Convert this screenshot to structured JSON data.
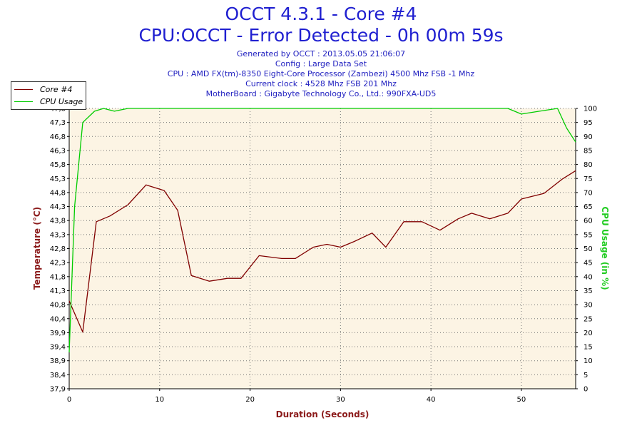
{
  "header": {
    "title": "OCCT 4.3.1 - Core #4",
    "subtitle": "CPU:OCCT - Error Detected - 0h 00m 59s",
    "info_lines": [
      "Generated by OCCT : 2013.05.05 21:06:07",
      "Config : Large Data Set",
      "CPU : AMD FX(tm)-8350 Eight-Core Processor (Zambezi) 4500 Mhz FSB -1 Mhz",
      "Current clock : 4528 Mhz FSB 201 Mhz",
      "MotherBoard : Gigabyte Technology Co., Ltd.: 990FXA-UD5"
    ]
  },
  "legend": {
    "items": [
      {
        "label": "Core #4",
        "color": "#800000"
      },
      {
        "label": "CPU Usage",
        "color": "#00cc00"
      }
    ],
    "position": "top-left"
  },
  "chart_data": {
    "type": "line",
    "xlabel": "Duration (Seconds)",
    "ylabel": "Temperature (°C)",
    "y2label": "CPU Usage (in %)",
    "xlim": [
      0,
      56
    ],
    "ylim": [
      37.9,
      47.8
    ],
    "y2lim": [
      0,
      100
    ],
    "x_ticks": [
      0,
      10,
      20,
      30,
      40,
      50
    ],
    "y_ticks": [
      "37,9",
      "38,4",
      "38,9",
      "39,4",
      "39,9",
      "40,4",
      "40,8",
      "41,3",
      "41,8",
      "42,3",
      "42,8",
      "43,3",
      "43,8",
      "44,3",
      "44,8",
      "45,3",
      "45,8",
      "46,3",
      "46,8",
      "47,3",
      "47,8"
    ],
    "y2_ticks": [
      0,
      5,
      10,
      15,
      20,
      25,
      30,
      35,
      40,
      45,
      50,
      55,
      60,
      65,
      70,
      75,
      80,
      85,
      90,
      95,
      100
    ],
    "grid": true,
    "background": "#fcf4e4",
    "series": [
      {
        "name": "Core #4",
        "axis": "left",
        "color": "#800000",
        "x": [
          0,
          1.5,
          3,
          4.5,
          6.5,
          8.5,
          10.5,
          12,
          13.5,
          15.5,
          17.5,
          19,
          21,
          23.5,
          25,
          27,
          28.5,
          30,
          31.5,
          33.5,
          35,
          37,
          39,
          41,
          43,
          44.5,
          46.5,
          48.5,
          50,
          52.5,
          54.5,
          56
        ],
        "y": [
          41.0,
          39.9,
          43.8,
          44.0,
          44.4,
          45.1,
          44.9,
          44.2,
          41.9,
          41.7,
          41.8,
          41.8,
          42.6,
          42.5,
          42.5,
          42.9,
          43.0,
          42.9,
          43.1,
          43.4,
          42.9,
          43.8,
          43.8,
          43.5,
          43.9,
          44.1,
          43.9,
          44.1,
          44.6,
          44.8,
          45.3,
          45.6
        ]
      },
      {
        "name": "CPU Usage",
        "axis": "right",
        "color": "#00cc00",
        "x": [
          0,
          0.6,
          1.5,
          2.8,
          3.8,
          5,
          6.5,
          10,
          15,
          20,
          25,
          30,
          35,
          40,
          45,
          48.5,
          50,
          52,
          54,
          55,
          56
        ],
        "y": [
          13,
          65,
          95,
          99,
          100,
          99,
          100,
          100,
          100,
          100,
          100,
          100,
          100,
          100,
          100,
          100,
          98,
          99,
          100,
          93,
          88
        ]
      }
    ]
  }
}
